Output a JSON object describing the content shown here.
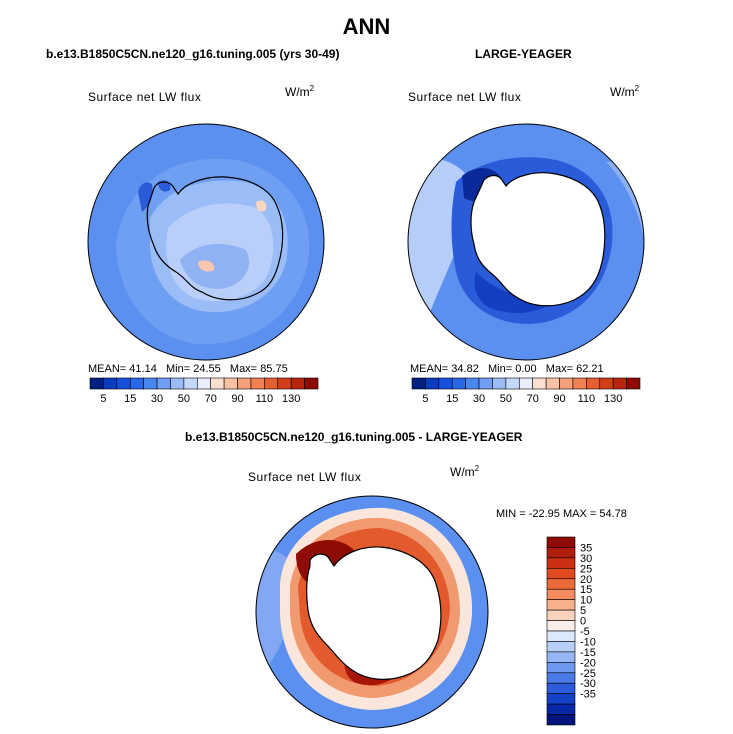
{
  "page": {
    "title": "ANN",
    "colors": {
      "ocean": "#5b8ff0",
      "land_mask": "#ffffff",
      "coastline": "#000000"
    }
  },
  "chart_data": [
    {
      "type": "heatmap",
      "projection": "south-polar-stereographic",
      "title": "b.e13.B1850C5CN.ne120_g16.tuning.005 (yrs 30-49)",
      "field": "Surface net LW flux",
      "units": "W/m2",
      "stats": {
        "mean_label": "MEAN=",
        "mean": "41.14",
        "min_label": "Min=",
        "min": "24.55",
        "max_label": "Max=",
        "max": "85.75"
      },
      "colorbar": {
        "orientation": "horizontal",
        "tick_labels": [
          "5",
          "15",
          "30",
          "50",
          "70",
          "90",
          "110",
          "130"
        ],
        "colors": [
          "#002080",
          "#0a3cc0",
          "#1450dc",
          "#2868e6",
          "#4a86f0",
          "#729ef5",
          "#9cbcf8",
          "#c4d8fb",
          "#e8eefc",
          "#fbe0d0",
          "#f9c2a4",
          "#f5a078",
          "#f0804f",
          "#e45e2f",
          "#d23e18",
          "#b8240c",
          "#8e0c04"
        ]
      }
    },
    {
      "type": "heatmap",
      "projection": "south-polar-stereographic",
      "title": "LARGE-YEAGER",
      "field": "Surface net LW flux",
      "units": "W/m2",
      "stats": {
        "mean_label": "MEAN=",
        "mean": "34.82",
        "min_label": "Min=",
        "min": "0.00",
        "max_label": "Max=",
        "max": "62.21"
      },
      "colorbar": {
        "orientation": "horizontal",
        "tick_labels": [
          "5",
          "15",
          "30",
          "50",
          "70",
          "90",
          "110",
          "130"
        ],
        "colors": [
          "#002080",
          "#0a3cc0",
          "#1450dc",
          "#2868e6",
          "#4a86f0",
          "#729ef5",
          "#9cbcf8",
          "#c4d8fb",
          "#e8eefc",
          "#fbe0d0",
          "#f9c2a4",
          "#f5a078",
          "#f0804f",
          "#e45e2f",
          "#d23e18",
          "#b8240c",
          "#8e0c04"
        ]
      }
    },
    {
      "type": "heatmap",
      "projection": "south-polar-stereographic",
      "title": "b.e13.B1850C5CN.ne120_g16.tuning.005 - LARGE-YEAGER",
      "field": "Surface net LW flux",
      "units": "W/m2",
      "stats": {
        "min_label": "MIN =",
        "min": "-22.95",
        "max_label": "MAX =",
        "max": "54.78"
      },
      "colorbar": {
        "orientation": "vertical",
        "tick_labels": [
          "35",
          "30",
          "25",
          "20",
          "15",
          "10",
          "5",
          "0",
          "-5",
          "-10",
          "-15",
          "-20",
          "-25",
          "-30",
          "-35"
        ],
        "colors": [
          "#8e0c04",
          "#b01c0a",
          "#cc3012",
          "#e04a1e",
          "#ec6a38",
          "#f28c5e",
          "#f6b08c",
          "#f9d2bc",
          "#fbeee8",
          "#dce8fb",
          "#b8cff8",
          "#94b6f4",
          "#6e98ee",
          "#4a7ae6",
          "#2c5cdc",
          "#1440c8",
          "#0828a8",
          "#00147c"
        ]
      }
    }
  ]
}
